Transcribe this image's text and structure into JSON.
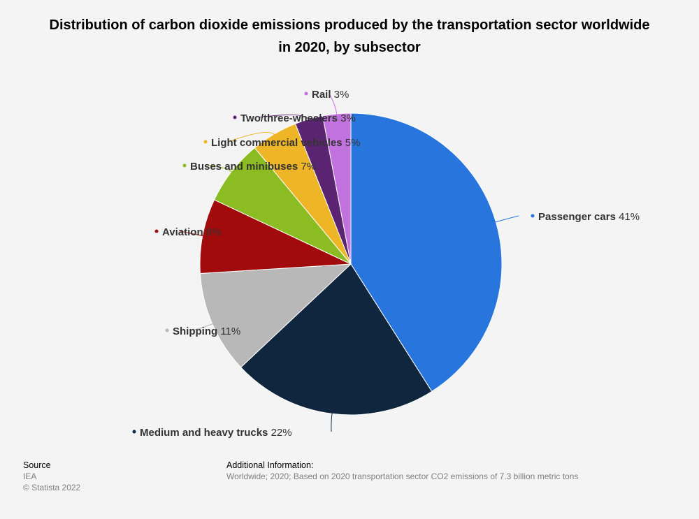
{
  "chart_data": {
    "type": "pie",
    "title": "Distribution of carbon dioxide emissions produced by the transportation sector worldwide in 2020, by subsector",
    "value_suffix": "%",
    "slices": [
      {
        "label": "Passenger cars",
        "value": 41,
        "color": "#2876dd"
      },
      {
        "label": "Medium and heavy trucks",
        "value": 22,
        "color": "#10263e"
      },
      {
        "label": "Shipping",
        "value": 11,
        "color": "#b8b8b8"
      },
      {
        "label": "Aviation",
        "value": 8,
        "color": "#a20b0b"
      },
      {
        "label": "Buses and minibuses",
        "value": 7,
        "color": "#8bbc21"
      },
      {
        "label": "Light commercial vehicles",
        "value": 5,
        "color": "#eeb526"
      },
      {
        "label": "Two/three-wheelers",
        "value": 3,
        "color": "#5b2472"
      },
      {
        "label": "Rail",
        "value": 3,
        "color": "#c272de"
      }
    ]
  },
  "footer": {
    "source_heading": "Source",
    "source": "IEA",
    "copyright": "© Statista 2022",
    "info_heading": "Additional Information:",
    "info": "Worldwide; 2020; Based on 2020 transportation sector CO2 emissions of 7.3 billion metric tons"
  }
}
